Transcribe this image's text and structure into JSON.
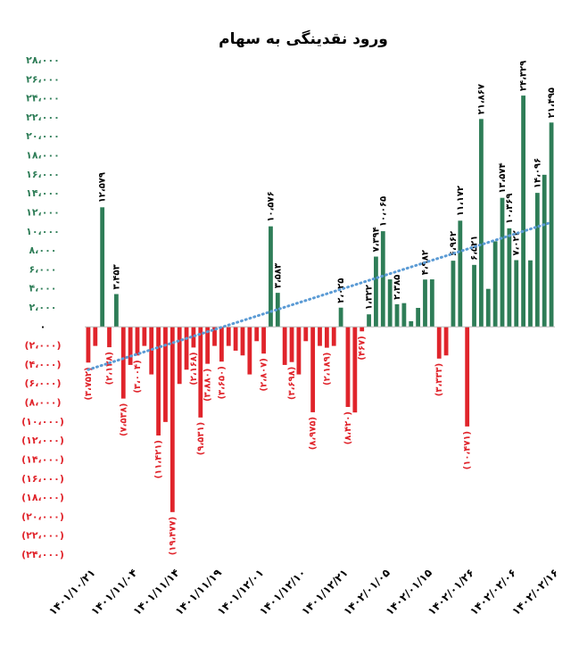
{
  "chart_data": {
    "type": "bar",
    "title": "ورود نقدینگی به سهام",
    "color": "#2e7d57",
    "negative_color": "#e0242b",
    "trendline": {
      "values": [
        -4500,
        11000
      ],
      "color": "#5b9bd5"
    },
    "ylim": [
      -24000,
      28000
    ],
    "yticks": [
      {
        "value": 28000,
        "label": "۲۸،۰۰۰"
      },
      {
        "value": 26000,
        "label": "۲۶،۰۰۰"
      },
      {
        "value": 24000,
        "label": "۲۴،۰۰۰"
      },
      {
        "value": 22000,
        "label": "۲۲،۰۰۰"
      },
      {
        "value": 20000,
        "label": "۲۰،۰۰۰"
      },
      {
        "value": 18000,
        "label": "۱۸،۰۰۰"
      },
      {
        "value": 16000,
        "label": "۱۶،۰۰۰"
      },
      {
        "value": 14000,
        "label": "۱۴،۰۰۰"
      },
      {
        "value": 12000,
        "label": "۱۲،۰۰۰"
      },
      {
        "value": 10000,
        "label": "۱۰،۰۰۰"
      },
      {
        "value": 8000,
        "label": "۸،۰۰۰"
      },
      {
        "value": 6000,
        "label": "۶،۰۰۰"
      },
      {
        "value": 4000,
        "label": "۴،۰۰۰"
      },
      {
        "value": 2000,
        "label": "۲،۰۰۰"
      },
      {
        "value": 0,
        "label": "۰"
      },
      {
        "value": -2000,
        "label": "(۲،۰۰۰)"
      },
      {
        "value": -4000,
        "label": "(۴،۰۰۰)"
      },
      {
        "value": -6000,
        "label": "(۶،۰۰۰)"
      },
      {
        "value": -8000,
        "label": "(۸،۰۰۰)"
      },
      {
        "value": -10000,
        "label": "(۱۰،۰۰۰)"
      },
      {
        "value": -12000,
        "label": "(۱۲،۰۰۰)"
      },
      {
        "value": -14000,
        "label": "(۱۴،۰۰۰)"
      },
      {
        "value": -16000,
        "label": "(۱۶،۰۰۰)"
      },
      {
        "value": -18000,
        "label": "(۱۸،۰۰۰)"
      },
      {
        "value": -20000,
        "label": "(۲۰،۰۰۰)"
      },
      {
        "value": -22000,
        "label": "(۲۲،۰۰۰)"
      },
      {
        "value": -24000,
        "label": "(۲۴،۰۰۰)"
      }
    ],
    "categories": [
      "۱۴۰۱/۱۰/۲۱",
      null,
      null,
      null,
      null,
      null,
      "۱۴۰۱/۱۱/۰۴",
      null,
      null,
      null,
      null,
      null,
      "۱۴۰۱/۱۱/۱۴",
      null,
      null,
      null,
      null,
      null,
      "۱۴۰۱/۱۱/۱۹",
      null,
      null,
      null,
      null,
      null,
      "۱۴۰۱/۱۲/۰۱",
      null,
      null,
      null,
      null,
      null,
      "۱۴۰۱/۱۲/۱۰",
      null,
      null,
      null,
      null,
      null,
      "۱۴۰۱/۱۲/۲۱",
      null,
      null,
      null,
      null,
      null,
      "۱۴۰۲/۰۱/۰۵",
      null,
      null,
      null,
      null,
      null,
      "۱۴۰۲/۰۱/۱۵",
      null,
      null,
      null,
      null,
      null,
      "۱۴۰۲/۰۱/۲۶",
      null,
      null,
      null,
      null,
      null,
      "۱۴۰۲/۰۲/۰۶",
      null,
      null,
      null,
      null,
      null,
      "۱۴۰۲/۰۲/۱۶"
    ],
    "values": [
      -3752,
      -2000,
      12579,
      -2138,
      3453,
      -7538,
      -4000,
      -3004,
      -2000,
      -5000,
      -11421,
      -10000,
      -19477,
      -6000,
      -4500,
      -2168,
      -9531,
      -3880,
      -2000,
      -3650,
      -2000,
      -2500,
      -3000,
      -5000,
      -1500,
      -2807,
      10576,
      3583,
      -4000,
      -3698,
      -5000,
      -1500,
      -8975,
      -2000,
      -2189,
      -2000,
      2025,
      -8420,
      -9000,
      -467,
      1322,
      7394,
      10065,
      5000,
      2385,
      2500,
      600,
      2000,
      4982,
      5000,
      -3333,
      -3000,
      6962,
      11172,
      -10471,
      6521,
      21867,
      4000,
      9000,
      13574,
      10369,
      7022,
      24329,
      7000,
      14096,
      16000,
      21495
    ],
    "value_labels": [
      "(۳،۷۵۲)",
      null,
      "۱۲،۵۷۹",
      "(۲،۱۳۸)",
      "۳،۴۵۳",
      "(۷،۵۳۸)",
      null,
      "(۳،۰۰۴)",
      null,
      null,
      "(۱۱،۴۲۱)",
      null,
      "(۱۹،۴۷۷)",
      null,
      null,
      "(۲،۱۶۸)",
      "(۹،۵۳۱)",
      "(۳،۸۸۰)",
      null,
      "(۳،۶۵۰)",
      null,
      null,
      null,
      null,
      null,
      "(۲،۸۰۷)",
      "۱۰،۵۷۶",
      "۳،۵۸۳",
      null,
      "(۳،۶۹۸)",
      null,
      null,
      "(۸،۹۷۵)",
      null,
      "(۲،۱۸۹)",
      null,
      "۲،۰۲۵",
      "(۸،۴۲۰)",
      null,
      "(۴۶۷)",
      "۱،۳۲۲",
      "۷،۳۹۴",
      "۱۰،۰۶۵",
      null,
      "۲،۳۸۵",
      null,
      null,
      null,
      "۴،۹۸۲",
      null,
      "(۳،۳۳۳)",
      null,
      "۶،۹۶۲",
      "۱۱،۱۷۲",
      "(۱۰،۴۷۱)",
      "۶،۵۲۱",
      "۲۱،۸۶۷",
      null,
      null,
      "۱۳،۵۷۴",
      "۱۰،۳۶۹",
      "۷،۰۲۲",
      "۲۴،۳۲۹",
      null,
      "۱۴،۰۹۶",
      null,
      "۲۱،۴۹۵"
    ]
  }
}
